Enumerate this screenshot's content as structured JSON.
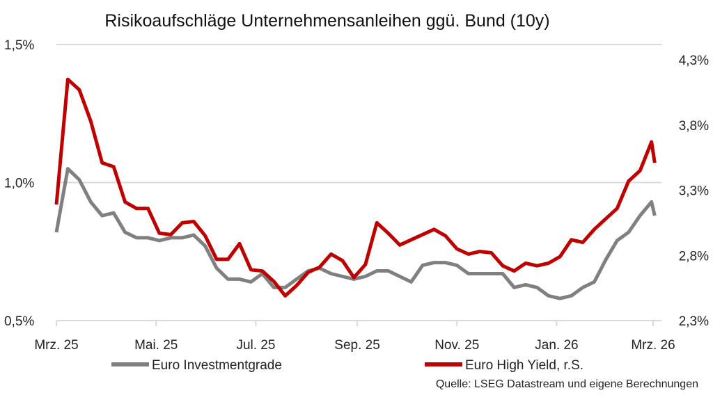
{
  "chart_data": {
    "type": "line",
    "title": "Risikoaufschläge Unternehmensanleihen ggü. Bund (10y)",
    "source": "Quelle: LSEG Datastream und eigene Berechnungen",
    "grid": "horizontal",
    "legend_position": "bottom",
    "x_axis": {
      "range": [
        "2025-03-01",
        "2026-03-01"
      ],
      "ticks": [
        {
          "date": "2025-03-01",
          "label": "Mrz. 25"
        },
        {
          "date": "2025-05-01",
          "label": "Mai. 25"
        },
        {
          "date": "2025-07-01",
          "label": "Jul. 25"
        },
        {
          "date": "2025-09-01",
          "label": "Sep. 25"
        },
        {
          "date": "2025-11-01",
          "label": "Nov. 25"
        },
        {
          "date": "2026-01-01",
          "label": "Jan. 26"
        },
        {
          "date": "2026-03-01",
          "label": "Mrz. 26"
        }
      ]
    },
    "y_left": {
      "range": [
        0.5,
        1.5
      ],
      "ticks": [
        {
          "v": 0.5,
          "label": "0,5%"
        },
        {
          "v": 1.0,
          "label": "1,0%"
        },
        {
          "v": 1.5,
          "label": "1,5%"
        }
      ]
    },
    "y_right": {
      "range": [
        2.3,
        4.3
      ],
      "ticks": [
        {
          "v": 2.3,
          "label": "2,3%"
        },
        {
          "v": 2.8,
          "label": "2,8%"
        },
        {
          "v": 3.3,
          "label": "3,3%"
        },
        {
          "v": 3.8,
          "label": "3,8%"
        },
        {
          "v": 4.3,
          "label": "4,3%"
        }
      ]
    },
    "x": [
      "2025-03-01",
      "2025-03-08",
      "2025-03-15",
      "2025-03-22",
      "2025-03-29",
      "2025-04-05",
      "2025-04-12",
      "2025-04-19",
      "2025-04-26",
      "2025-05-03",
      "2025-05-10",
      "2025-05-17",
      "2025-05-24",
      "2025-05-31",
      "2025-06-07",
      "2025-06-14",
      "2025-06-21",
      "2025-06-28",
      "2025-07-05",
      "2025-07-12",
      "2025-07-19",
      "2025-07-26",
      "2025-08-02",
      "2025-08-09",
      "2025-08-16",
      "2025-08-23",
      "2025-08-30",
      "2025-09-06",
      "2025-09-13",
      "2025-09-20",
      "2025-09-27",
      "2025-10-04",
      "2025-10-11",
      "2025-10-18",
      "2025-10-25",
      "2025-11-01",
      "2025-11-08",
      "2025-11-15",
      "2025-11-22",
      "2025-11-29",
      "2025-12-06",
      "2025-12-13",
      "2025-12-20",
      "2025-12-27",
      "2026-01-03",
      "2026-01-10",
      "2026-01-17",
      "2026-01-24",
      "2026-01-31",
      "2026-02-07",
      "2026-02-14",
      "2026-02-21",
      "2026-02-28",
      "2026-03-02"
    ],
    "series": [
      {
        "name": "Euro Investmentgrade",
        "axis": "left",
        "color": "#808080",
        "values": [
          0.82,
          1.05,
          1.01,
          0.93,
          0.88,
          0.89,
          0.82,
          0.8,
          0.8,
          0.79,
          0.8,
          0.8,
          0.81,
          0.77,
          0.69,
          0.65,
          0.65,
          0.64,
          0.67,
          0.62,
          0.62,
          0.65,
          0.68,
          0.69,
          0.67,
          0.66,
          0.65,
          0.66,
          0.68,
          0.68,
          0.66,
          0.64,
          0.7,
          0.71,
          0.71,
          0.7,
          0.67,
          0.67,
          0.67,
          0.67,
          0.62,
          0.63,
          0.62,
          0.59,
          0.58,
          0.59,
          0.62,
          0.64,
          0.72,
          0.79,
          0.82,
          0.88,
          0.93,
          0.88
        ]
      },
      {
        "name": "Euro High Yield, r.S.",
        "axis": "right",
        "color": "#c00000",
        "values": [
          3.19,
          4.15,
          4.07,
          3.83,
          3.51,
          3.48,
          3.21,
          3.16,
          3.16,
          2.97,
          2.96,
          3.05,
          3.06,
          2.95,
          2.77,
          2.77,
          2.89,
          2.69,
          2.68,
          2.6,
          2.49,
          2.57,
          2.67,
          2.71,
          2.81,
          2.76,
          2.63,
          2.73,
          3.05,
          2.97,
          2.88,
          2.92,
          2.96,
          3.0,
          2.95,
          2.85,
          2.81,
          2.83,
          2.82,
          2.72,
          2.68,
          2.74,
          2.72,
          2.74,
          2.79,
          2.92,
          2.9,
          3.0,
          3.08,
          3.16,
          3.37,
          3.45,
          3.67,
          3.51
        ]
      }
    ]
  }
}
